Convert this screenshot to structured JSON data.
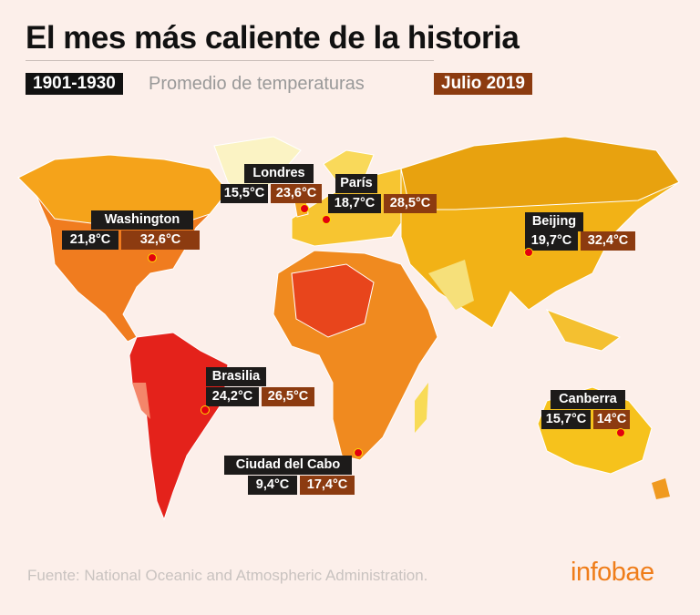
{
  "header": {
    "title": "El mes más caliente de la historia"
  },
  "legend": {
    "period_old": "1901-1930",
    "description": "Promedio de temperaturas",
    "period_new": "Julio 2019"
  },
  "cities": [
    {
      "name": "Londres",
      "old": "15,5°C",
      "new": "23,6°C"
    },
    {
      "name": "París",
      "old": "18,7°C",
      "new": "28,5°C"
    },
    {
      "name": "Washington",
      "old": "21,8°C",
      "new": "32,6°C"
    },
    {
      "name": "Beijing",
      "old": "19,7°C",
      "new": "32,4°C"
    },
    {
      "name": "Brasilia",
      "old": "24,2°C",
      "new": "26,5°C"
    },
    {
      "name": "Canberra",
      "old": "15,7°C",
      "new": "14°C"
    },
    {
      "name": "Ciudad del Cabo",
      "old": "9,4°C",
      "new": "17,4°C"
    }
  ],
  "footer": {
    "source": "Fuente: National Oceanic and Atmospheric Administration.",
    "brand": "infobae"
  }
}
